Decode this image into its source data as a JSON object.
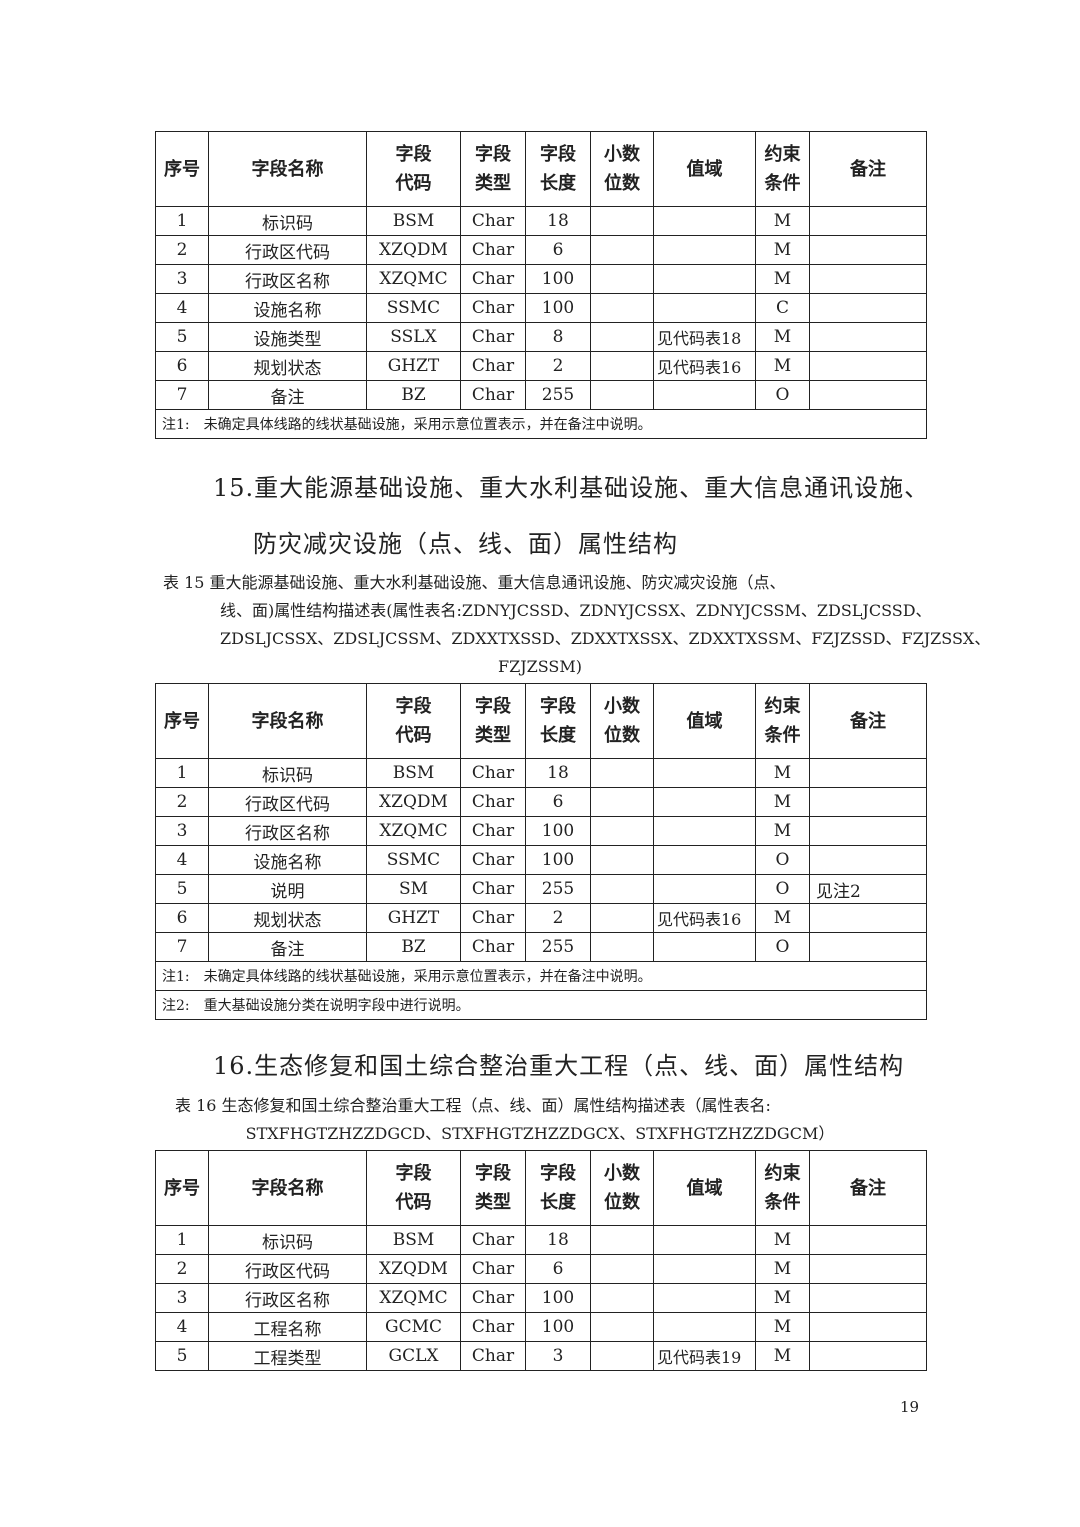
{
  "headers": [
    "序号",
    "字段名称",
    "字段\n代码",
    "字段\n类型",
    "字段\n长度",
    "小数\n位数",
    "值域",
    "约束\n条件",
    "备注"
  ],
  "table14": {
    "rows": [
      [
        "1",
        "标识码",
        "BSM",
        "Char",
        "18",
        "",
        "",
        "M",
        ""
      ],
      [
        "2",
        "行政区代码",
        "XZQDM",
        "Char",
        "6",
        "",
        "",
        "M",
        ""
      ],
      [
        "3",
        "行政区名称",
        "XZQMC",
        "Char",
        "100",
        "",
        "",
        "M",
        ""
      ],
      [
        "4",
        "设施名称",
        "SSMC",
        "Char",
        "100",
        "",
        "",
        "C",
        ""
      ],
      [
        "5",
        "设施类型",
        "SSLX",
        "Char",
        "8",
        "",
        "见代码表18",
        "M",
        ""
      ],
      [
        "6",
        "规划状态",
        "GHZT",
        "Char",
        "2",
        "",
        "见代码表16",
        "M",
        ""
      ],
      [
        "7",
        "备注",
        "BZ",
        "Char",
        "255",
        "",
        "",
        "O",
        ""
      ]
    ],
    "notes": [
      "注1:　未确定具体线路的线状基础设施，采用示意位置表示，并在备注中说明。"
    ]
  },
  "section15": {
    "heading_line1": "15.重大能源基础设施、重大水利基础设施、重大信息通讯设施、",
    "heading_line2": "防灾减灾设施（点、线、面）属性结构",
    "caption": [
      "表 15 重大能源基础设施、重大水利基础设施、重大信息通讯设施、防灾减灾设施（点、",
      "线、面)属性结构描述表(属性表名:ZDNYJCSSD、ZDNYJCSSX、ZDNYJCSSM、ZDSLJCSSD、",
      "ZDSLJCSSX、ZDSLJCSSM、ZDXXTXSSD、ZDXXTXSSX、ZDXXTXSSM、FZJZSSD、FZJZSSX、",
      "FZJZSSM)"
    ]
  },
  "table15": {
    "rows": [
      [
        "1",
        "标识码",
        "BSM",
        "Char",
        "18",
        "",
        "",
        "M",
        ""
      ],
      [
        "2",
        "行政区代码",
        "XZQDM",
        "Char",
        "6",
        "",
        "",
        "M",
        ""
      ],
      [
        "3",
        "行政区名称",
        "XZQMC",
        "Char",
        "100",
        "",
        "",
        "M",
        ""
      ],
      [
        "4",
        "设施名称",
        "SSMC",
        "Char",
        "100",
        "",
        "",
        "O",
        ""
      ],
      [
        "5",
        "说明",
        "SM",
        "Char",
        "255",
        "",
        "",
        "O",
        "见注2"
      ],
      [
        "6",
        "规划状态",
        "GHZT",
        "Char",
        "2",
        "",
        "见代码表16",
        "M",
        ""
      ],
      [
        "7",
        "备注",
        "BZ",
        "Char",
        "255",
        "",
        "",
        "O",
        ""
      ]
    ],
    "notes": [
      "注1:　未确定具体线路的线状基础设施，采用示意位置表示，并在备注中说明。",
      "注2:　重大基础设施分类在说明字段中进行说明。"
    ]
  },
  "section16": {
    "heading": "16.生态修复和国土综合整治重大工程（点、线、面）属性结构",
    "caption": [
      "表 16 生态修复和国土综合整治重大工程（点、线、面）属性结构描述表（属性表名:",
      "STXFHGTZHZZDGCD、STXFHGTZHZZDGCX、STXFHGTZHZZDGCM）"
    ]
  },
  "table16": {
    "rows": [
      [
        "1",
        "标识码",
        "BSM",
        "Char",
        "18",
        "",
        "",
        "M",
        ""
      ],
      [
        "2",
        "行政区代码",
        "XZQDM",
        "Char",
        "6",
        "",
        "",
        "M",
        ""
      ],
      [
        "3",
        "行政区名称",
        "XZQMC",
        "Char",
        "100",
        "",
        "",
        "M",
        ""
      ],
      [
        "4",
        "工程名称",
        "GCMC",
        "Char",
        "100",
        "",
        "",
        "M",
        ""
      ],
      [
        "5",
        "工程类型",
        "GCLX",
        "Char",
        "3",
        "",
        "见代码表19",
        "M",
        ""
      ]
    ],
    "notes": []
  },
  "page_number": "19"
}
